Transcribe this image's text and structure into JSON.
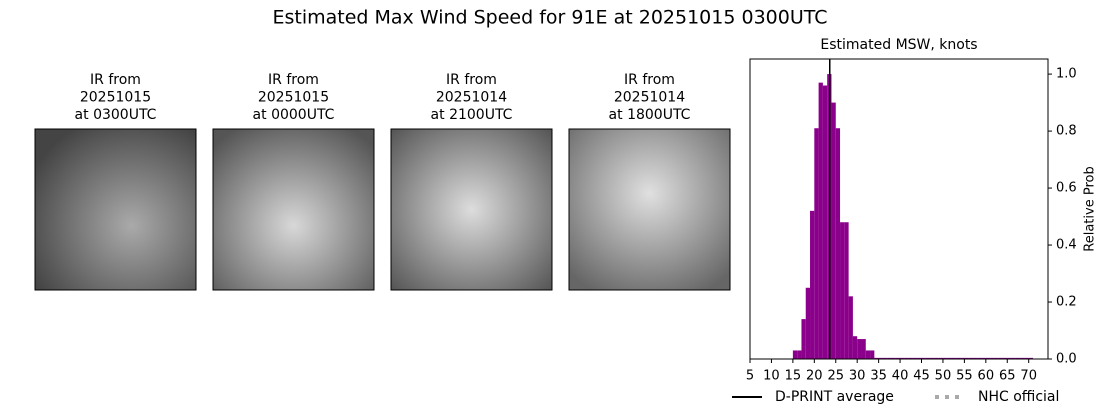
{
  "title": "Estimated Max Wind Speed for 91E at 20251015 0300UTC",
  "panels": [
    {
      "lines": [
        "IR from",
        "20251015",
        "at 0300UTC"
      ]
    },
    {
      "lines": [
        "IR from",
        "20251015",
        "at 0000UTC"
      ]
    },
    {
      "lines": [
        "IR from",
        "20251014",
        "at 2100UTC"
      ]
    },
    {
      "lines": [
        "IR from",
        "20251014",
        "at 1800UTC"
      ]
    }
  ],
  "chart_data": {
    "type": "histogram",
    "title": "Estimated MSW, knots",
    "ylabel": "Relative Prob",
    "color": "#8b008b",
    "bins": [
      15,
      16,
      17,
      18,
      19,
      20,
      21,
      22,
      23,
      24,
      25,
      26,
      27,
      28,
      29,
      30,
      31,
      32,
      33,
      34,
      35,
      36,
      37,
      38,
      39,
      40,
      41,
      42,
      43,
      44,
      45,
      46,
      47,
      48,
      49,
      50,
      51,
      52,
      53,
      54,
      55,
      56,
      57,
      58,
      59,
      60,
      61,
      62,
      63,
      64,
      65,
      66,
      67,
      68,
      69,
      70,
      71
    ],
    "counts": [
      0.03,
      0.03,
      0.14,
      0.25,
      0.52,
      0.81,
      0.97,
      0.96,
      1.0,
      0.9,
      0.81,
      0.48,
      0.48,
      0.22,
      0.08,
      0.07,
      0.07,
      0.03,
      0.03,
      0.004,
      0.004,
      0.004,
      0.004,
      0.004,
      0.004,
      0.004,
      0.004,
      0.004,
      0.004,
      0.004,
      0.004,
      0.004,
      0.004,
      0.004,
      0.004,
      0.004,
      0.004,
      0.004,
      0.004,
      0.004,
      0.004,
      0.004,
      0.004,
      0.004,
      0.004,
      0.004,
      0.004,
      0.004,
      0.004,
      0.004,
      0.004,
      0.004,
      0.004,
      0.004,
      0.004,
      0.004
    ],
    "xlim": [
      5,
      74.5
    ],
    "ylim": [
      0,
      1.053
    ],
    "xticks": [
      5,
      10,
      15,
      20,
      25,
      30,
      35,
      40,
      45,
      50,
      55,
      60,
      65,
      70
    ],
    "yticks": [
      {
        "value": 0,
        "label": "0.0"
      },
      0.2,
      0.4,
      0.6,
      0.8,
      {
        "value": 1,
        "label": "1.0"
      }
    ],
    "lines": [
      {
        "name": "D-PRINT average",
        "x": 23.6,
        "color": "#000000",
        "dash": "solid"
      },
      {
        "name": "NHC official",
        "x": null,
        "color": "#aaaaaa",
        "dash": "dotted"
      }
    ]
  }
}
